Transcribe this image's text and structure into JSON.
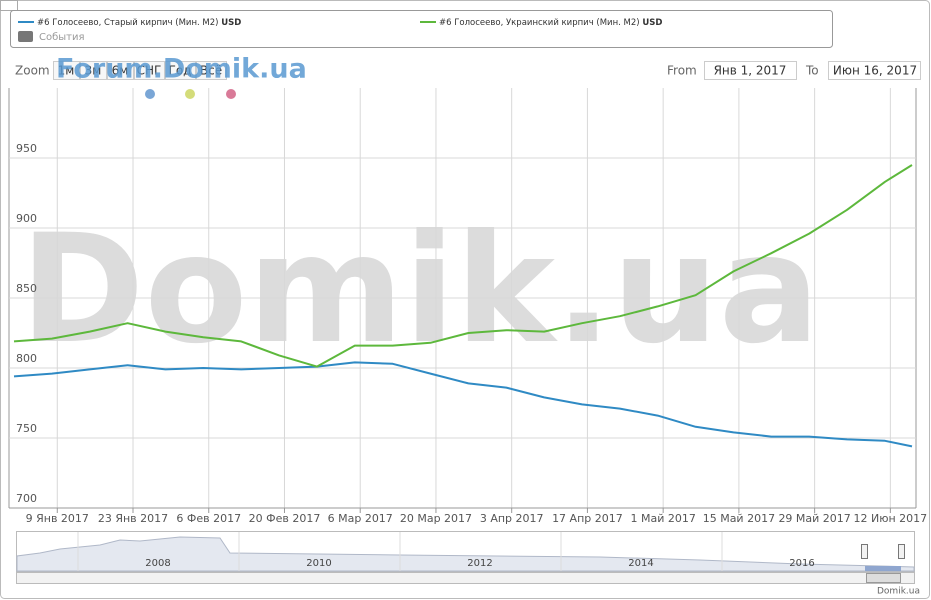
{
  "chart_data": {
    "type": "line",
    "x": [
      "2017-01-01",
      "2017-01-08",
      "2017-01-15",
      "2017-01-22",
      "2017-01-29",
      "2017-02-05",
      "2017-02-12",
      "2017-02-19",
      "2017-02-26",
      "2017-03-05",
      "2017-03-12",
      "2017-03-19",
      "2017-03-26",
      "2017-04-02",
      "2017-04-09",
      "2017-04-16",
      "2017-04-23",
      "2017-04-30",
      "2017-05-07",
      "2017-05-14",
      "2017-05-21",
      "2017-05-28",
      "2017-06-04",
      "2017-06-11",
      "2017-06-16"
    ],
    "series": [
      {
        "name": "#6 Голосеево, Старый кирпич (Мин. М2)",
        "color": "#2f8ac4",
        "values": [
          794,
          796,
          799,
          802,
          799,
          800,
          799,
          800,
          801,
          804,
          803,
          796,
          789,
          786,
          779,
          774,
          771,
          766,
          758,
          754,
          751,
          751,
          749,
          748,
          744
        ]
      },
      {
        "name": "#6 Голосеево, Украинский кирпич (Мин. М2)",
        "color": "#5db83c",
        "values": [
          819,
          821,
          826,
          832,
          826,
          822,
          819,
          809,
          801,
          816,
          816,
          818,
          825,
          827,
          826,
          832,
          837,
          844,
          852,
          869,
          882,
          896,
          913,
          933,
          945
        ]
      }
    ],
    "unit": "USD",
    "events_label": "События",
    "xlim": [
      "2017-01-01",
      "2017-06-16"
    ],
    "xticks": [
      {
        "value": "2017-01-09",
        "label": "9 Янв 2017"
      },
      {
        "value": "2017-01-23",
        "label": "23 Янв 2017"
      },
      {
        "value": "2017-02-06",
        "label": "6 Фев 2017"
      },
      {
        "value": "2017-02-20",
        "label": "20 Фев 2017"
      },
      {
        "value": "2017-03-06",
        "label": "6 Мар 2017"
      },
      {
        "value": "2017-03-20",
        "label": "20 Мар 2017"
      },
      {
        "value": "2017-04-03",
        "label": "3 Апр 2017"
      },
      {
        "value": "2017-04-17",
        "label": "17 Апр 2017"
      },
      {
        "value": "2017-05-01",
        "label": "1 Май 2017"
      },
      {
        "value": "2017-05-15",
        "label": "15 Май 2017"
      },
      {
        "value": "2017-05-29",
        "label": "29 Май 2017"
      },
      {
        "value": "2017-06-12",
        "label": "12 Июн 2017"
      }
    ],
    "ylim": [
      700,
      1000
    ],
    "yticks": [
      700,
      750,
      800,
      850,
      900,
      950
    ],
    "grid": true
  },
  "range_selector": {
    "zoom_label": "Zoom",
    "buttons": [
      "1м",
      "3м",
      "6м",
      "СНГ",
      "Год",
      "Всё"
    ],
    "from_label": "From",
    "from_value": "Янв 1, 2017",
    "to_label": "To",
    "to_value": "Июн 16, 2017"
  },
  "navigator": {
    "years": [
      "2008",
      "2010",
      "2012",
      "2014",
      "2016"
    ]
  },
  "watermark": "Domik.ua",
  "forum_logo": "Forum.Domik.ua",
  "credits": "Domik.ua"
}
